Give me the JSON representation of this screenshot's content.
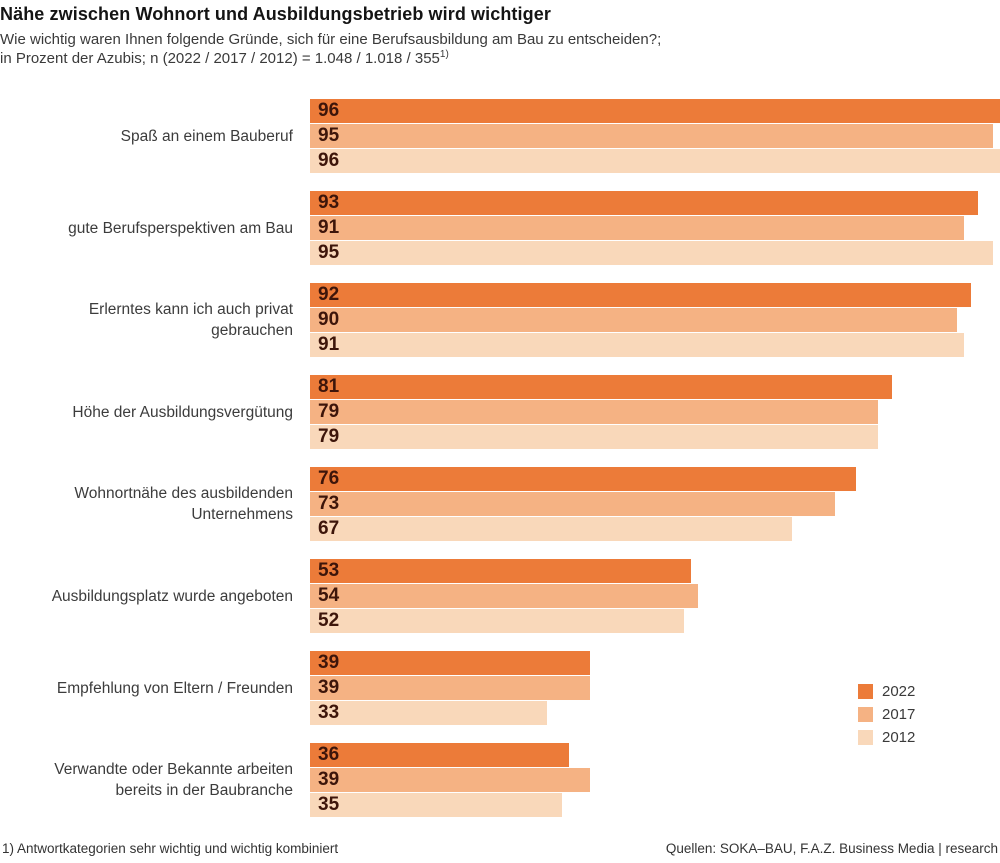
{
  "chart_data": {
    "type": "bar",
    "orientation": "horizontal",
    "title": "Nähe zwischen Wohnort und Ausbildungsbetrieb wird wichtiger",
    "subtitle_line1": "Wie wichtig waren Ihnen folgende Gründe, sich für eine Berufsausbildung am Bau zu entscheiden?;",
    "subtitle_line2": "in Prozent der Azubis; n (2022 / 2017 / 2012) = 1.048 / 1.018 / 355",
    "subtitle_footnote_marker": "1)",
    "unit": "Prozent der Azubis",
    "xlim": [
      0,
      96
    ],
    "axes_visible": false,
    "grid": false,
    "value_labels": "inside-start",
    "legend_position": "right-near-bottom",
    "categories": [
      "Spaß an einem Bauberuf",
      "gute Berufsperspektiven am Bau",
      "Erlerntes kann ich auch privat\ngebrauchen",
      "Höhe der Ausbildungsvergütung",
      "Wohnortnähe des ausbildenden\nUnternehmens",
      "Ausbildungsplatz wurde angeboten",
      "Empfehlung von Eltern / Freunden",
      "Verwandte oder Bekannte arbeiten\nbereits in der Baubranche"
    ],
    "series": [
      {
        "name": "2022",
        "color": "#ec7b39",
        "values": [
          96,
          93,
          92,
          81,
          76,
          53,
          39,
          36
        ]
      },
      {
        "name": "2017",
        "color": "#f5b283",
        "values": [
          95,
          91,
          90,
          79,
          73,
          54,
          39,
          39
        ]
      },
      {
        "name": "2012",
        "color": "#f9d8ba",
        "values": [
          96,
          95,
          91,
          79,
          67,
          52,
          33,
          35
        ]
      }
    ]
  },
  "legend": {
    "items": [
      {
        "label": "2022",
        "color": "#ec7b39"
      },
      {
        "label": "2017",
        "color": "#f5b283"
      },
      {
        "label": "2012",
        "color": "#f9d8ba"
      }
    ]
  },
  "footer": {
    "footnote": "1) Antwortkategorien sehr wichtig und wichtig kombiniert",
    "source": "Quellen: SOKA–BAU, F.A.Z. Business Media | research"
  },
  "colors": {
    "title": "#141414",
    "body_text": "#3a3a3a",
    "value_label": "#3d150a",
    "background": "#ffffff"
  }
}
